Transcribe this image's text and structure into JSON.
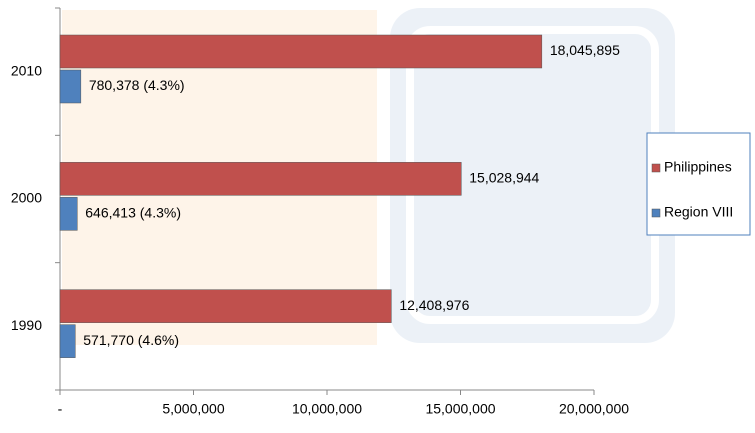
{
  "chart_data": {
    "type": "bar",
    "orientation": "horizontal",
    "categories": [
      "1990",
      "2000",
      "2010"
    ],
    "series": [
      {
        "name": "Philippines",
        "color": "#c0504d",
        "values": [
          12408976,
          15028944,
          18045895
        ],
        "value_labels": [
          "12,408,976",
          "15,028,944",
          "18,045,895"
        ]
      },
      {
        "name": "Region VIII",
        "color": "#4f81bd",
        "values": [
          571770,
          646413,
          780378
        ],
        "value_labels": [
          "571,770 (4.6%)",
          "646,413 (4.3%)",
          "780,378 (4.3%)"
        ]
      }
    ],
    "xlim": [
      0,
      20000000
    ],
    "xticks": [
      {
        "value": 0,
        "label": "-"
      },
      {
        "value": 5000000,
        "label": "5,000,000"
      },
      {
        "value": 10000000,
        "label": "10,000,000"
      },
      {
        "value": 15000000,
        "label": "15,000,000"
      },
      {
        "value": 20000000,
        "label": "20,000,000"
      }
    ],
    "legend": "right"
  }
}
